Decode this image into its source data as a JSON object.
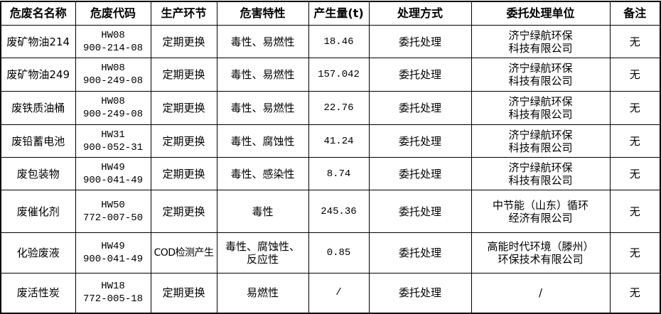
{
  "table": {
    "headers": [
      "危废名名称",
      "危废代码",
      "生产环节",
      "危害特性",
      "产生量(t)",
      "处理方式",
      "委托处理单位",
      "备注"
    ],
    "rows": [
      {
        "name": "废矿物油214",
        "code_class": "HW08",
        "code": "900-214-08",
        "stage": "定期更换",
        "hazard": "毒性、易燃性",
        "amount": "18.46",
        "method": "委托处理",
        "unit_line1": "济宁绿航环保",
        "unit_line2": "科技有限公司",
        "note": "无"
      },
      {
        "name": "废矿物油249",
        "code_class": "HW08",
        "code": "900-249-08",
        "stage": "定期更换",
        "hazard": "毒性、易燃性",
        "amount": "157.042",
        "method": "委托处理",
        "unit_line1": "济宁绿航环保",
        "unit_line2": "科技有限公司",
        "note": "无"
      },
      {
        "name": "废铁质油桶",
        "code_class": "HW08",
        "code": "900-249-08",
        "stage": "定期更换",
        "hazard": "毒性、易燃性",
        "amount": "22.76",
        "method": "委托处理",
        "unit_line1": "济宁绿航环保",
        "unit_line2": "科技有限公司",
        "note": "无"
      },
      {
        "name": "废铅蓄电池",
        "code_class": "HW31",
        "code": "900-052-31",
        "stage": "定期更换",
        "hazard": "毒性、腐蚀性",
        "amount": "41.24",
        "method": "委托处理",
        "unit_line1": "济宁绿航环保",
        "unit_line2": "科技有限公司",
        "note": "无"
      },
      {
        "name": "废包装物",
        "code_class": "HW49",
        "code": "900-041-49",
        "stage": "定期更换",
        "hazard": "毒性、感染性",
        "amount": "8.74",
        "method": "委托处理",
        "unit_line1": "济宁绿航环保",
        "unit_line2": "科技有限公司",
        "note": "无"
      },
      {
        "name": "废催化剂",
        "code_class": "HW50",
        "code": "772-007-50",
        "stage": "定期更换",
        "hazard": "毒性",
        "amount": "245.36",
        "method": "委托处理",
        "unit_line1": "中节能（山东）循环",
        "unit_line2": "经济有限公司",
        "note": "无"
      },
      {
        "name": "化验废液",
        "code_class": "HW49",
        "code": "900-041-49",
        "stage": "COD检测产生",
        "hazard": "毒性、腐蚀性、",
        "hazard_line2": "反应性",
        "amount": "0.85",
        "method": "委托处理",
        "unit_line1": "高能时代环境（滕州）",
        "unit_line2": "环保技术有限公司",
        "note": "无"
      },
      {
        "name": "废活性炭",
        "code_class": "HW18",
        "code": "772-005-18",
        "stage": "定期更换",
        "hazard": "易燃性",
        "amount": "/",
        "method": "委托处理",
        "unit_line1": "/",
        "note": "无"
      }
    ]
  }
}
